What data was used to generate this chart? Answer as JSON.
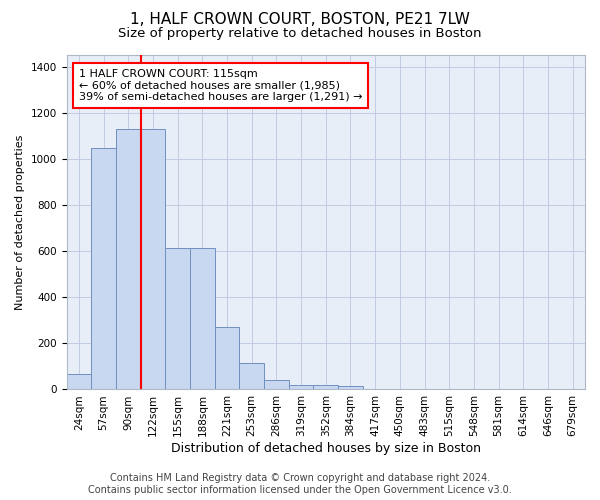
{
  "title": "1, HALF CROWN COURT, BOSTON, PE21 7LW",
  "subtitle": "Size of property relative to detached houses in Boston",
  "xlabel": "Distribution of detached houses by size in Boston",
  "ylabel": "Number of detached properties",
  "categories": [
    "24sqm",
    "57sqm",
    "90sqm",
    "122sqm",
    "155sqm",
    "188sqm",
    "221sqm",
    "253sqm",
    "286sqm",
    "319sqm",
    "352sqm",
    "384sqm",
    "417sqm",
    "450sqm",
    "483sqm",
    "515sqm",
    "548sqm",
    "581sqm",
    "614sqm",
    "646sqm",
    "679sqm"
  ],
  "values": [
    65,
    1045,
    1130,
    1130,
    615,
    615,
    270,
    115,
    42,
    20,
    20,
    14,
    0,
    0,
    0,
    0,
    0,
    0,
    0,
    0,
    0
  ],
  "bar_color": "#c8d8f0",
  "bar_edge_color": "#7090c0",
  "background_color": "#e8eef8",
  "grid_color": "#c0cce0",
  "annotation_line1": "1 HALF CROWN COURT: 115sqm",
  "annotation_line2": "← 60% of detached houses are smaller (1,985)",
  "annotation_line3": "39% of semi-detached houses are larger (1,291) →",
  "annotation_box_color": "red",
  "vline_x_index": 3,
  "vline_color": "red",
  "ylim": [
    0,
    1450
  ],
  "yticks": [
    0,
    200,
    400,
    600,
    800,
    1000,
    1200,
    1400
  ],
  "footnote": "Contains HM Land Registry data © Crown copyright and database right 2024.\nContains public sector information licensed under the Open Government Licence v3.0.",
  "title_fontsize": 11,
  "subtitle_fontsize": 9.5,
  "xlabel_fontsize": 9,
  "ylabel_fontsize": 8,
  "tick_fontsize": 7.5,
  "annotation_fontsize": 8,
  "footnote_fontsize": 7
}
